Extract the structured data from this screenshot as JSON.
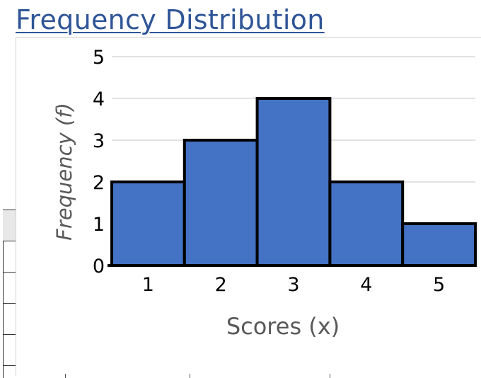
{
  "page": {
    "title": "Frequency Distribution"
  },
  "colors": {
    "bar_fill": "#4472C4",
    "bar_stroke": "#000000",
    "grid": "#D9D9D9",
    "title": "#2F5597",
    "axis_title": "#595959"
  },
  "chart_data": {
    "type": "bar",
    "title": "",
    "xlabel": "Scores (x)",
    "ylabel": "Frequency (f)",
    "categories": [
      "1",
      "2",
      "3",
      "4",
      "5"
    ],
    "values": [
      2,
      3,
      4,
      2,
      1
    ],
    "ylim": [
      0,
      5
    ],
    "yticks": [
      "0",
      "1",
      "2",
      "3",
      "4",
      "5"
    ],
    "grid": true,
    "legend": "none"
  }
}
